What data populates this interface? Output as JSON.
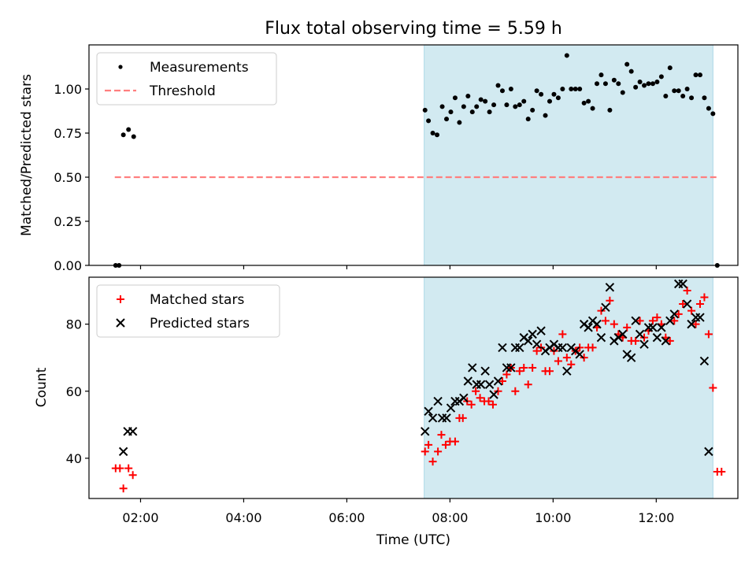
{
  "title": "Flux total observing time = 5.59 h",
  "xlabel": "Time (UTC)",
  "x_tick_labels": [
    "02:00",
    "04:00",
    "06:00",
    "08:00",
    "10:00",
    "12:00"
  ],
  "colors": {
    "shade": "#add8e6",
    "threshold": "#ff7f7f",
    "measurements": "#000000",
    "matched": "#ff0000",
    "predicted": "#000000"
  },
  "chart_data": [
    {
      "type": "scatter",
      "panel": "top",
      "ylabel": "Matched/Predicted stars",
      "xlim": [
        "01:00",
        "13:35"
      ],
      "ylim": [
        0,
        1.25
      ],
      "y_tick_labels": [
        "0.00",
        "0.25",
        "0.50",
        "0.75",
        "1.00"
      ],
      "shaded_span": [
        "07:30",
        "13:06"
      ],
      "legend": {
        "position": "upper-left",
        "entries": [
          "Measurements",
          "Threshold"
        ]
      },
      "threshold": {
        "name": "Threshold",
        "value": 0.5,
        "x_range": [
          "01:30",
          "13:10"
        ]
      },
      "series": [
        {
          "name": "Measurements",
          "marker": "dot",
          "points": [
            [
              "01:31",
              0.0
            ],
            [
              "01:35",
              0.0
            ],
            [
              "01:40",
              0.74
            ],
            [
              "01:46",
              0.77
            ],
            [
              "01:52",
              0.73
            ],
            [
              "07:31",
              0.88
            ],
            [
              "07:35",
              0.82
            ],
            [
              "07:40",
              0.75
            ],
            [
              "07:45",
              0.74
            ],
            [
              "07:51",
              0.9
            ],
            [
              "07:56",
              0.83
            ],
            [
              "08:01",
              0.87
            ],
            [
              "08:06",
              0.95
            ],
            [
              "08:11",
              0.81
            ],
            [
              "08:16",
              0.9
            ],
            [
              "08:21",
              0.96
            ],
            [
              "08:26",
              0.87
            ],
            [
              "08:31",
              0.9
            ],
            [
              "08:36",
              0.94
            ],
            [
              "08:41",
              0.93
            ],
            [
              "08:46",
              0.87
            ],
            [
              "08:51",
              0.91
            ],
            [
              "08:56",
              1.02
            ],
            [
              "09:01",
              0.99
            ],
            [
              "09:06",
              0.91
            ],
            [
              "09:11",
              1.0
            ],
            [
              "09:16",
              0.9
            ],
            [
              "09:21",
              0.91
            ],
            [
              "09:26",
              0.93
            ],
            [
              "09:31",
              0.83
            ],
            [
              "09:36",
              0.88
            ],
            [
              "09:41",
              0.99
            ],
            [
              "09:46",
              0.97
            ],
            [
              "09:51",
              0.85
            ],
            [
              "09:56",
              0.93
            ],
            [
              "10:01",
              0.97
            ],
            [
              "10:06",
              0.95
            ],
            [
              "10:11",
              1.0
            ],
            [
              "10:16",
              1.19
            ],
            [
              "10:21",
              1.0
            ],
            [
              "10:26",
              1.0
            ],
            [
              "10:31",
              1.0
            ],
            [
              "10:36",
              0.92
            ],
            [
              "10:41",
              0.93
            ],
            [
              "10:46",
              0.89
            ],
            [
              "10:51",
              1.03
            ],
            [
              "10:56",
              1.08
            ],
            [
              "11:01",
              1.03
            ],
            [
              "11:06",
              0.88
            ],
            [
              "11:11",
              1.05
            ],
            [
              "11:16",
              1.03
            ],
            [
              "11:21",
              0.98
            ],
            [
              "11:26",
              1.14
            ],
            [
              "11:31",
              1.1
            ],
            [
              "11:36",
              1.01
            ],
            [
              "11:41",
              1.04
            ],
            [
              "11:46",
              1.02
            ],
            [
              "11:51",
              1.03
            ],
            [
              "11:56",
              1.03
            ],
            [
              "12:01",
              1.04
            ],
            [
              "12:06",
              1.07
            ],
            [
              "12:11",
              0.96
            ],
            [
              "12:16",
              1.12
            ],
            [
              "12:21",
              0.99
            ],
            [
              "12:26",
              0.99
            ],
            [
              "12:31",
              0.96
            ],
            [
              "12:36",
              1.0
            ],
            [
              "12:41",
              0.95
            ],
            [
              "12:46",
              1.08
            ],
            [
              "12:51",
              1.08
            ],
            [
              "12:56",
              0.95
            ],
            [
              "13:01",
              0.89
            ],
            [
              "13:06",
              0.86
            ],
            [
              "13:11",
              0.0
            ]
          ]
        }
      ]
    },
    {
      "type": "scatter",
      "panel": "bottom",
      "ylabel": "Count",
      "xlim": [
        "01:00",
        "13:35"
      ],
      "ylim": [
        28,
        94
      ],
      "y_tick_labels": [
        "40",
        "60",
        "80"
      ],
      "shaded_span": [
        "07:30",
        "13:06"
      ],
      "legend": {
        "position": "upper-left",
        "entries": [
          "Matched stars",
          "Predicted stars"
        ]
      },
      "series": [
        {
          "name": "Matched stars",
          "marker": "plus",
          "points": [
            [
              "01:31",
              37
            ],
            [
              "01:36",
              37
            ],
            [
              "01:40",
              31
            ],
            [
              "01:46",
              37
            ],
            [
              "01:51",
              35
            ],
            [
              "07:31",
              42
            ],
            [
              "07:35",
              44
            ],
            [
              "07:40",
              39
            ],
            [
              "07:46",
              42
            ],
            [
              "07:50",
              47
            ],
            [
              "07:55",
              44
            ],
            [
              "08:00",
              45
            ],
            [
              "08:06",
              45
            ],
            [
              "08:11",
              52
            ],
            [
              "08:15",
              52
            ],
            [
              "08:20",
              57
            ],
            [
              "08:25",
              56
            ],
            [
              "08:30",
              60
            ],
            [
              "08:35",
              58
            ],
            [
              "08:40",
              57
            ],
            [
              "08:45",
              57
            ],
            [
              "08:50",
              56
            ],
            [
              "08:56",
              60
            ],
            [
              "09:01",
              63
            ],
            [
              "09:06",
              65
            ],
            [
              "09:11",
              67
            ],
            [
              "09:16",
              60
            ],
            [
              "09:21",
              66
            ],
            [
              "09:26",
              67
            ],
            [
              "09:31",
              62
            ],
            [
              "09:36",
              67
            ],
            [
              "09:41",
              72
            ],
            [
              "09:46",
              73
            ],
            [
              "09:51",
              66
            ],
            [
              "09:56",
              66
            ],
            [
              "10:01",
              72
            ],
            [
              "10:06",
              69
            ],
            [
              "10:11",
              77
            ],
            [
              "10:16",
              70
            ],
            [
              "10:21",
              68
            ],
            [
              "10:26",
              72
            ],
            [
              "10:31",
              73
            ],
            [
              "10:36",
              70
            ],
            [
              "10:41",
              73
            ],
            [
              "10:46",
              73
            ],
            [
              "10:51",
              79
            ],
            [
              "10:56",
              84
            ],
            [
              "11:01",
              81
            ],
            [
              "11:06",
              87
            ],
            [
              "11:11",
              80
            ],
            [
              "11:16",
              77
            ],
            [
              "11:21",
              76
            ],
            [
              "11:26",
              79
            ],
            [
              "11:31",
              75
            ],
            [
              "11:36",
              75
            ],
            [
              "11:41",
              81
            ],
            [
              "11:46",
              76
            ],
            [
              "11:51",
              78
            ],
            [
              "11:56",
              81
            ],
            [
              "12:01",
              82
            ],
            [
              "12:06",
              80
            ],
            [
              "12:11",
              76
            ],
            [
              "12:16",
              75
            ],
            [
              "12:21",
              81
            ],
            [
              "12:26",
              83
            ],
            [
              "12:31",
              86
            ],
            [
              "12:36",
              90
            ],
            [
              "12:41",
              84
            ],
            [
              "12:46",
              80
            ],
            [
              "12:51",
              86
            ],
            [
              "12:56",
              88
            ],
            [
              "13:01",
              77
            ],
            [
              "13:06",
              61
            ],
            [
              "13:11",
              36
            ],
            [
              "13:16",
              36
            ]
          ]
        },
        {
          "name": "Predicted stars",
          "marker": "x",
          "points": [
            [
              "01:40",
              42
            ],
            [
              "01:45",
              48
            ],
            [
              "01:51",
              48
            ],
            [
              "07:31",
              48
            ],
            [
              "07:35",
              54
            ],
            [
              "07:40",
              52
            ],
            [
              "07:46",
              57
            ],
            [
              "07:51",
              52
            ],
            [
              "07:56",
              52
            ],
            [
              "08:01",
              55
            ],
            [
              "08:06",
              57
            ],
            [
              "08:11",
              57
            ],
            [
              "08:16",
              58
            ],
            [
              "08:21",
              63
            ],
            [
              "08:26",
              67
            ],
            [
              "08:31",
              62
            ],
            [
              "08:36",
              62
            ],
            [
              "08:41",
              66
            ],
            [
              "08:46",
              62
            ],
            [
              "08:51",
              59
            ],
            [
              "08:56",
              63
            ],
            [
              "09:01",
              73
            ],
            [
              "09:06",
              67
            ],
            [
              "09:11",
              67
            ],
            [
              "09:16",
              73
            ],
            [
              "09:21",
              73
            ],
            [
              "09:26",
              76
            ],
            [
              "09:31",
              75
            ],
            [
              "09:36",
              77
            ],
            [
              "09:41",
              74
            ],
            [
              "09:46",
              78
            ],
            [
              "09:51",
              72
            ],
            [
              "09:56",
              73
            ],
            [
              "10:01",
              74
            ],
            [
              "10:06",
              73
            ],
            [
              "10:11",
              73
            ],
            [
              "10:16",
              66
            ],
            [
              "10:21",
              73
            ],
            [
              "10:26",
              72
            ],
            [
              "10:31",
              71
            ],
            [
              "10:36",
              80
            ],
            [
              "10:41",
              79
            ],
            [
              "10:46",
              81
            ],
            [
              "10:51",
              80
            ],
            [
              "10:56",
              76
            ],
            [
              "11:01",
              85
            ],
            [
              "11:06",
              91
            ],
            [
              "11:11",
              75
            ],
            [
              "11:16",
              76
            ],
            [
              "11:21",
              77
            ],
            [
              "11:26",
              71
            ],
            [
              "11:31",
              70
            ],
            [
              "11:36",
              81
            ],
            [
              "11:41",
              77
            ],
            [
              "11:46",
              74
            ],
            [
              "11:51",
              79
            ],
            [
              "11:56",
              79
            ],
            [
              "12:01",
              76
            ],
            [
              "12:06",
              79
            ],
            [
              "12:11",
              75
            ],
            [
              "12:16",
              81
            ],
            [
              "12:21",
              83
            ],
            [
              "12:26",
              92
            ],
            [
              "12:31",
              92
            ],
            [
              "12:36",
              86
            ],
            [
              "12:41",
              80
            ],
            [
              "12:46",
              82
            ],
            [
              "12:51",
              82
            ],
            [
              "12:56",
              69
            ],
            [
              "13:01",
              42
            ]
          ]
        }
      ]
    }
  ]
}
